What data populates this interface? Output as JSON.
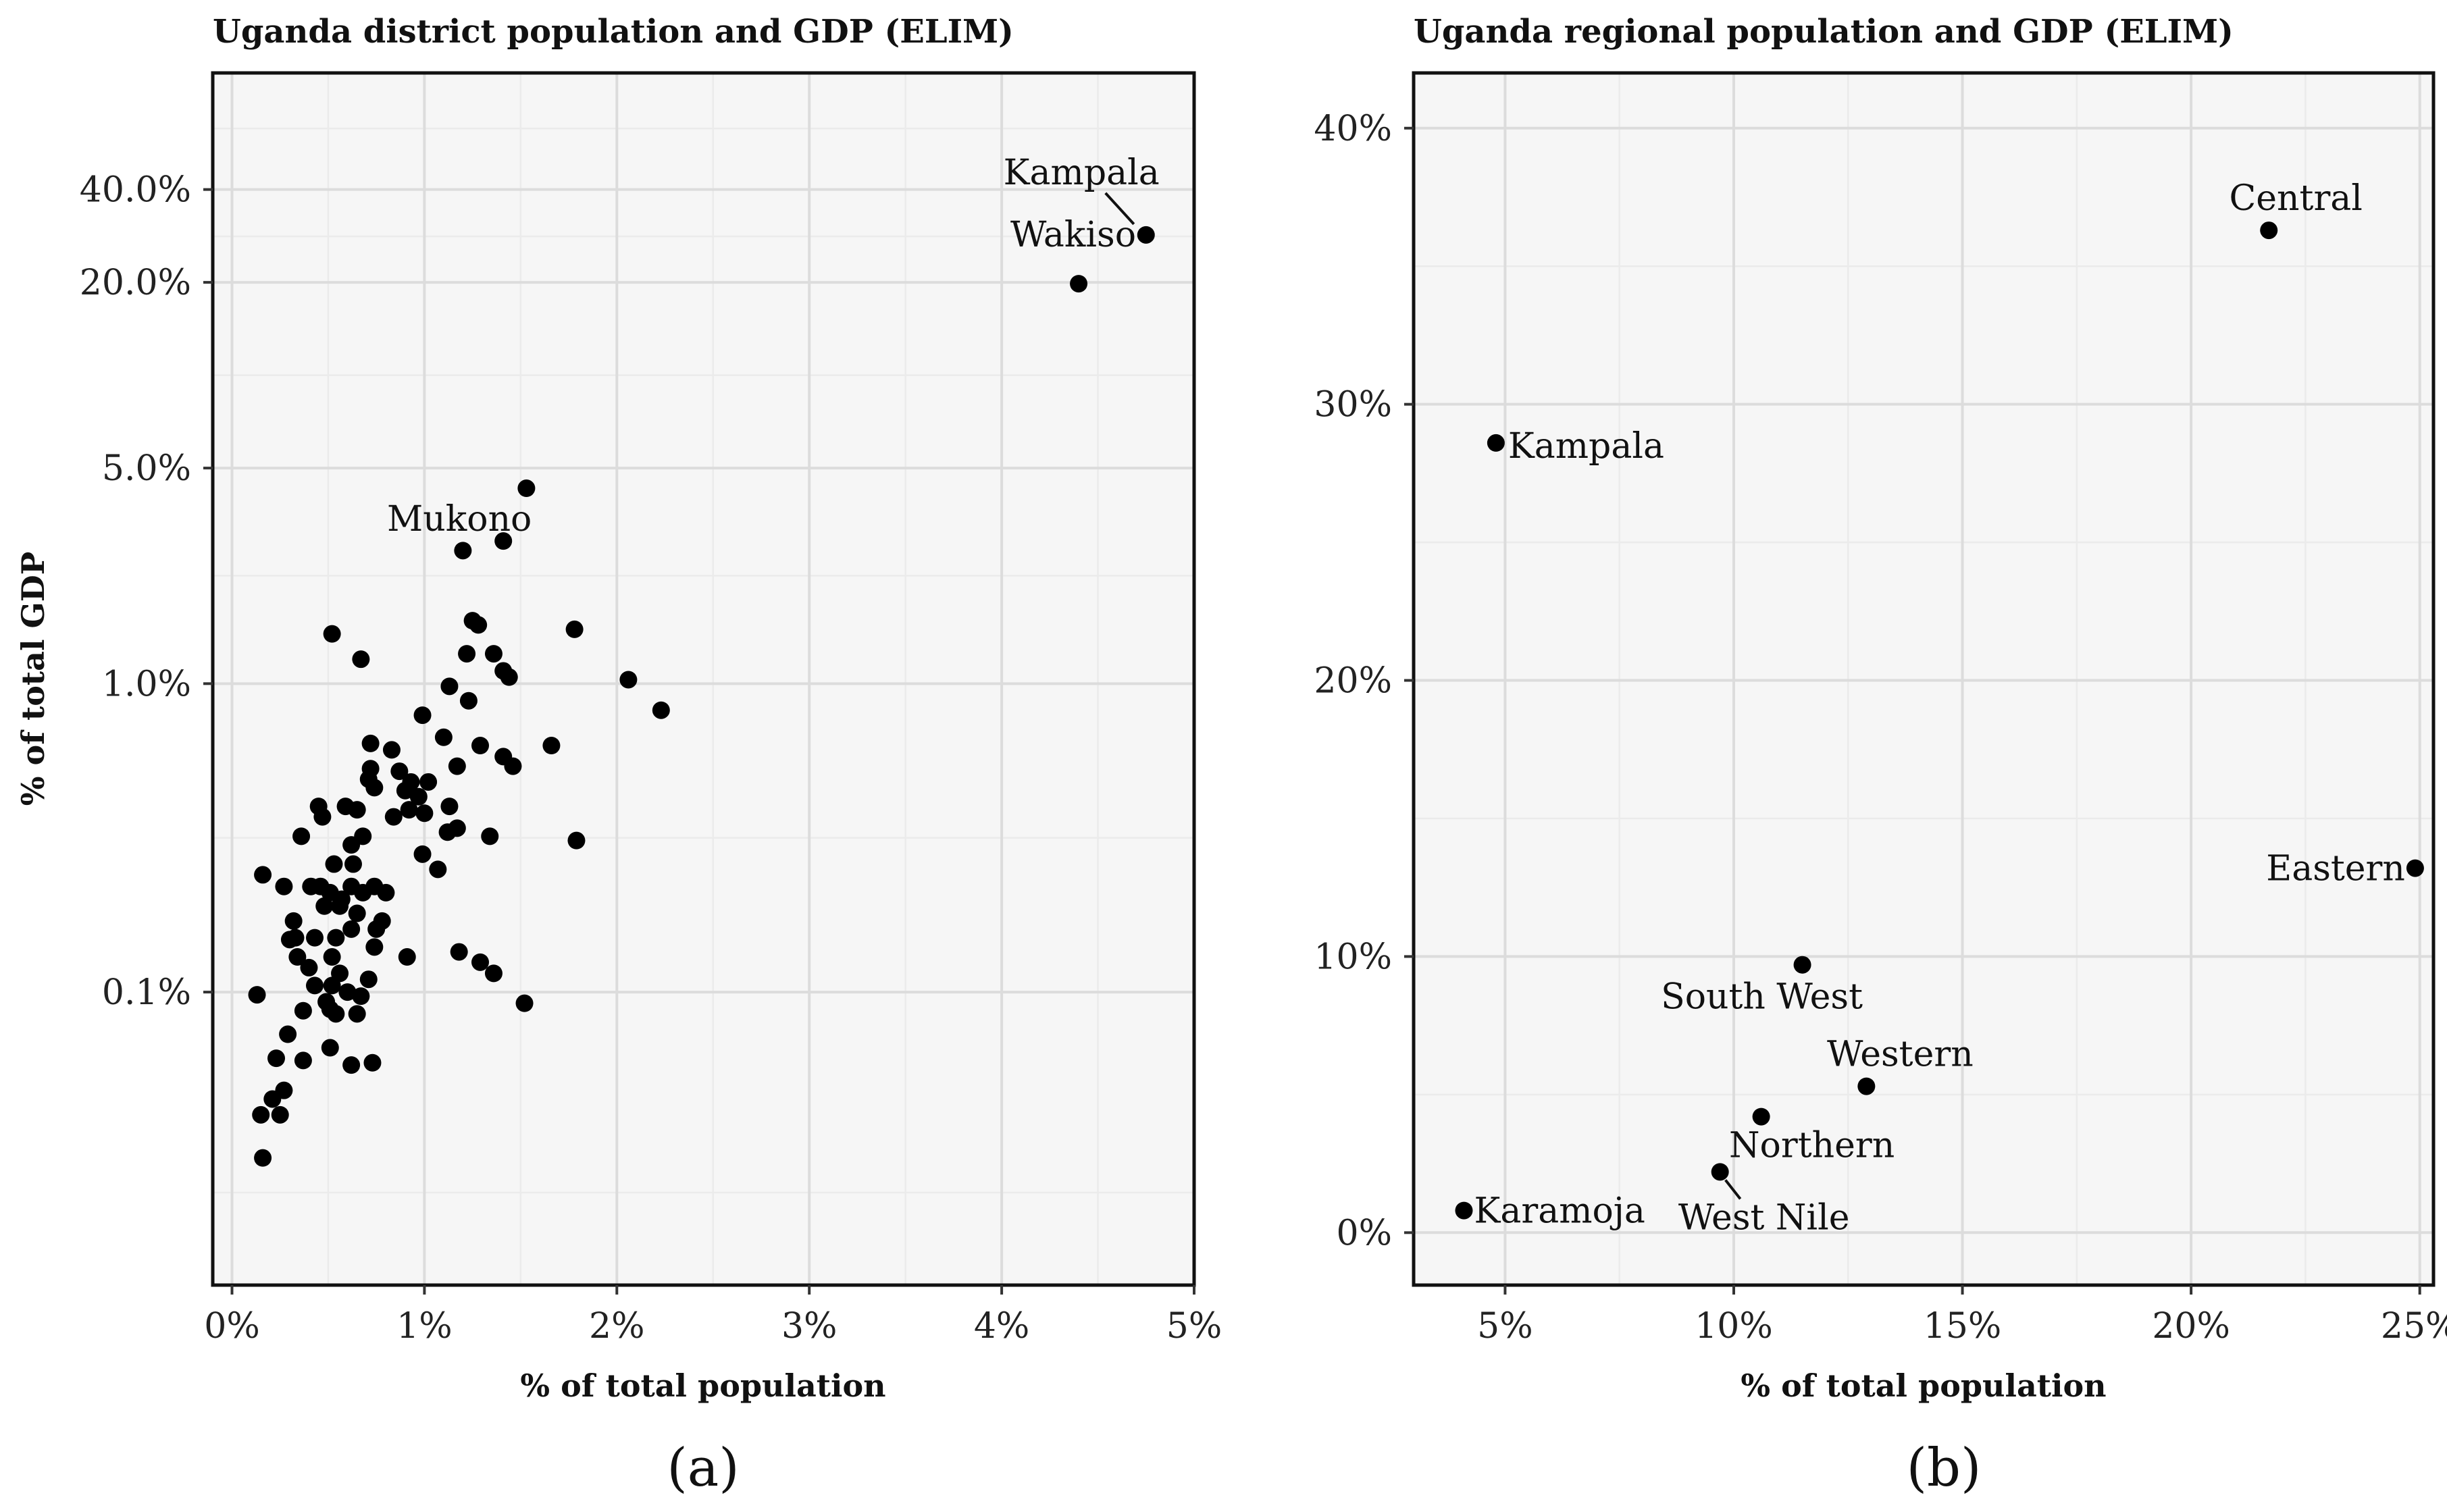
{
  "chart_data": [
    {
      "type": "scatter",
      "title": "Uganda district population and GDP (ELIM)",
      "xlabel": "% of total population",
      "ylabel": "% of total GDP",
      "y_scale": "log",
      "xlim": [
        -0.1,
        5.0
      ],
      "ylim_log10": [
        -1.95,
        1.98
      ],
      "x_ticks": [
        0,
        1,
        2,
        3,
        4,
        5
      ],
      "x_tick_labels": [
        "0%",
        "1%",
        "2%",
        "3%",
        "4%",
        "5%"
      ],
      "y_ticks": [
        0.1,
        1.0,
        5.0,
        20.0,
        40.0
      ],
      "y_tick_labels": [
        "0.1%",
        "1.0%",
        "5.0%",
        "20.0%",
        "40.0%"
      ],
      "caption": "(a)",
      "points": [
        [
          4.75,
          28.5
        ],
        [
          4.4,
          19.8
        ],
        [
          1.53,
          4.3
        ],
        [
          1.41,
          2.9
        ],
        [
          1.2,
          2.7
        ],
        [
          1.78,
          1.5
        ],
        [
          1.25,
          1.6
        ],
        [
          1.28,
          1.55
        ],
        [
          0.52,
          1.45
        ],
        [
          0.67,
          1.2
        ],
        [
          1.22,
          1.25
        ],
        [
          1.36,
          1.25
        ],
        [
          1.41,
          1.1
        ],
        [
          1.44,
          1.05
        ],
        [
          2.06,
          1.03
        ],
        [
          1.13,
          0.98
        ],
        [
          1.23,
          0.88
        ],
        [
          2.23,
          0.82
        ],
        [
          0.99,
          0.79
        ],
        [
          1.1,
          0.67
        ],
        [
          0.72,
          0.64
        ],
        [
          0.83,
          0.61
        ],
        [
          1.29,
          0.63
        ],
        [
          1.66,
          0.63
        ],
        [
          1.41,
          0.58
        ],
        [
          1.46,
          0.54
        ],
        [
          1.17,
          0.54
        ],
        [
          0.72,
          0.53
        ],
        [
          0.87,
          0.52
        ],
        [
          0.71,
          0.49
        ],
        [
          0.93,
          0.48
        ],
        [
          1.02,
          0.48
        ],
        [
          0.74,
          0.46
        ],
        [
          0.9,
          0.45
        ],
        [
          0.97,
          0.43
        ],
        [
          0.45,
          0.4
        ],
        [
          1.13,
          0.4
        ],
        [
          0.59,
          0.4
        ],
        [
          0.65,
          0.39
        ],
        [
          0.92,
          0.39
        ],
        [
          1.0,
          0.38
        ],
        [
          0.84,
          0.37
        ],
        [
          0.47,
          0.37
        ],
        [
          1.12,
          0.33
        ],
        [
          1.17,
          0.34
        ],
        [
          0.36,
          0.32
        ],
        [
          0.68,
          0.32
        ],
        [
          1.34,
          0.32
        ],
        [
          1.79,
          0.31
        ],
        [
          0.62,
          0.3
        ],
        [
          0.99,
          0.28
        ],
        [
          0.53,
          0.26
        ],
        [
          0.63,
          0.26
        ],
        [
          1.07,
          0.25
        ],
        [
          0.16,
          0.24
        ],
        [
          0.27,
          0.22
        ],
        [
          0.41,
          0.22
        ],
        [
          0.46,
          0.22
        ],
        [
          0.62,
          0.22
        ],
        [
          0.74,
          0.22
        ],
        [
          0.8,
          0.21
        ],
        [
          0.51,
          0.21
        ],
        [
          0.68,
          0.21
        ],
        [
          0.57,
          0.2
        ],
        [
          0.56,
          0.19
        ],
        [
          0.48,
          0.19
        ],
        [
          0.65,
          0.18
        ],
        [
          0.32,
          0.17
        ],
        [
          0.78,
          0.17
        ],
        [
          0.75,
          0.16
        ],
        [
          0.62,
          0.16
        ],
        [
          0.33,
          0.15
        ],
        [
          0.43,
          0.15
        ],
        [
          0.54,
          0.15
        ],
        [
          0.3,
          0.148
        ],
        [
          0.74,
          0.14
        ],
        [
          1.18,
          0.135
        ],
        [
          0.91,
          0.13
        ],
        [
          0.52,
          0.13
        ],
        [
          0.34,
          0.13
        ],
        [
          1.29,
          0.125
        ],
        [
          0.4,
          0.12
        ],
        [
          0.56,
          0.115
        ],
        [
          1.36,
          0.115
        ],
        [
          0.71,
          0.11
        ],
        [
          0.43,
          0.105
        ],
        [
          0.52,
          0.105
        ],
        [
          0.6,
          0.1
        ],
        [
          0.13,
          0.098
        ],
        [
          0.67,
          0.097
        ],
        [
          0.49,
          0.093
        ],
        [
          1.52,
          0.092
        ],
        [
          0.51,
          0.088
        ],
        [
          0.37,
          0.087
        ],
        [
          0.54,
          0.085
        ],
        [
          0.65,
          0.085
        ],
        [
          0.29,
          0.073
        ],
        [
          0.51,
          0.066
        ],
        [
          0.23,
          0.061
        ],
        [
          0.37,
          0.06
        ],
        [
          0.62,
          0.058
        ],
        [
          0.73,
          0.059
        ],
        [
          0.27,
          0.048
        ],
        [
          0.21,
          0.045
        ],
        [
          0.15,
          0.04
        ],
        [
          0.25,
          0.04
        ],
        [
          0.16,
          0.029
        ]
      ],
      "labels": [
        {
          "text": "Kampala",
          "x": 4.75,
          "y": 28.5
        },
        {
          "text": "Wakiso",
          "x": 4.4,
          "y": 19.8
        },
        {
          "text": "Mukono",
          "x": 1.41,
          "y": 2.9
        }
      ]
    },
    {
      "type": "scatter",
      "title": "Uganda regional population and GDP (ELIM)",
      "xlabel": "% of total population",
      "ylabel": "",
      "xlim": [
        3.0,
        25.3
      ],
      "ylim": [
        -1.9,
        42.0
      ],
      "x_ticks": [
        5,
        10,
        15,
        20,
        25
      ],
      "x_tick_labels": [
        "5%",
        "10%",
        "15%",
        "20%",
        "25%"
      ],
      "y_ticks": [
        0,
        10,
        20,
        30,
        40
      ],
      "y_tick_labels": [
        "0%",
        "10%",
        "20%",
        "30%",
        "40%"
      ],
      "caption": "(b)",
      "points": [
        {
          "name": "Central",
          "x": 21.7,
          "y": 36.3
        },
        {
          "name": "Kampala",
          "x": 4.8,
          "y": 28.6
        },
        {
          "name": "Eastern",
          "x": 24.9,
          "y": 13.2
        },
        {
          "name": "South West",
          "x": 11.5,
          "y": 9.7
        },
        {
          "name": "Western",
          "x": 12.9,
          "y": 5.3
        },
        {
          "name": "Northern",
          "x": 10.6,
          "y": 4.2
        },
        {
          "name": "West Nile",
          "x": 9.7,
          "y": 2.2
        },
        {
          "name": "Karamoja",
          "x": 4.1,
          "y": 0.8
        }
      ]
    }
  ]
}
